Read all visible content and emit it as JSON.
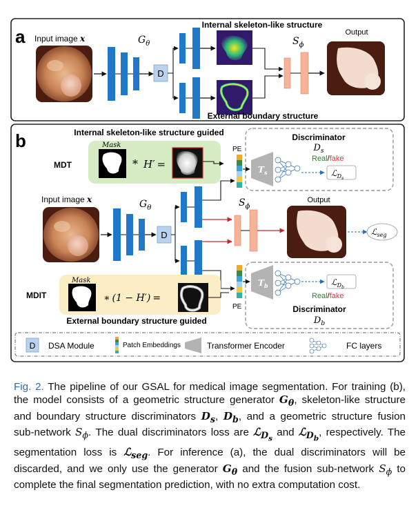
{
  "panel_a": {
    "letter": "a",
    "input_label": "Input image ",
    "input_var": "x",
    "generator": "G",
    "generator_sub": "θ",
    "dsa": "D",
    "internal_title": "Internal skeleton-like structure",
    "external_title": "External boundary structure",
    "fusion": "S",
    "fusion_sub": "ϕ",
    "output_label": "Output"
  },
  "panel_b": {
    "letter": "b",
    "internal_guided": "Internal skeleton-like structure guided",
    "external_guided": "External boundary structure guided",
    "mask_label": "Mask",
    "mdt": "MDT",
    "mdit": "MDIT",
    "eq_top_op": "*",
    "eq_top_h": "H′",
    "eq_top_eq": "=",
    "eq_bot_op": "∗",
    "eq_bot_expr": "(1 − H′)",
    "eq_bot_eq": "=",
    "pe_top": "PE",
    "pe_bot": "PE",
    "disc_top_title": "Discriminator",
    "disc_top_var": "D",
    "disc_top_sub": "s",
    "disc_bot_title": "Discriminator",
    "disc_bot_var": "D",
    "disc_bot_sub": "b",
    "real": "Real",
    "slash": "/",
    "fake": "fake",
    "ts": "T",
    "ts_sub": "s",
    "tb": "T",
    "tb_sub": "b",
    "loss_ds": "ℒ",
    "loss_ds_sub": "D",
    "loss_ds_subsub": "s",
    "loss_db": "ℒ",
    "loss_db_sub": "D",
    "loss_db_subsub": "b",
    "loss_seg": "ℒ",
    "loss_seg_sub": "seg",
    "input_label": "Input image ",
    "input_var": "x",
    "generator": "G",
    "generator_sub": "θ",
    "dsa": "D",
    "fusion": "S",
    "fusion_sub": "ϕ",
    "output_label": "Output"
  },
  "legend": {
    "dsa_box": "D",
    "dsa_text": "DSA Module",
    "pe_text": "Patch Embeddings",
    "transformer_text": "Transformer Encoder",
    "fc_text": "FC layers"
  },
  "caption": {
    "fig": "Fig. 2.",
    "t1": " The pipeline of our GSAL for medical image segmentation. For training (b), the model consists of a geometric structure generator ",
    "g": "G",
    "g_sub": "θ",
    "t2": ", skeleton-like structure and boundary structure discriminators ",
    "ds": "D",
    "ds_sub": "s",
    "t3": ", ",
    "db": "D",
    "db_sub": "b",
    "t4": ", and a geometric structure fusion sub-network ",
    "s": "S",
    "s_sub": "ϕ",
    "t5": ". The dual discriminators loss are ",
    "lds": "ℒ",
    "lds_sub": "D",
    "lds_subsub": "s",
    "t6": " and ",
    "ldb": "ℒ",
    "ldb_sub": "D",
    "ldb_subsub": "b",
    "t7": ", respectively. The segmentation loss is ",
    "lseg": "ℒ",
    "lseg_sub": "seg",
    "t8": ". For inference (a), the dual discriminators will be discarded, and we only use the generator ",
    "g2": "G",
    "g2_sub": "θ",
    "t9": " and the fusion sub-network ",
    "s2": "S",
    "s2_sub": "ϕ",
    "t10": " to complete the final segmentation prediction, with no extra computation cost."
  },
  "colors": {
    "encoder_blue": "#1f78c8",
    "fusion_orange": "#f5b49a",
    "dsa_fill": "#b9d3ec",
    "green_panel": "#d5ecc4",
    "yellow_panel": "#fbedc4",
    "arrow_red": "#c62828",
    "arrow_blue": "#2a6db3",
    "real_green": "#2e7d32",
    "fake_red": "#e53935"
  }
}
